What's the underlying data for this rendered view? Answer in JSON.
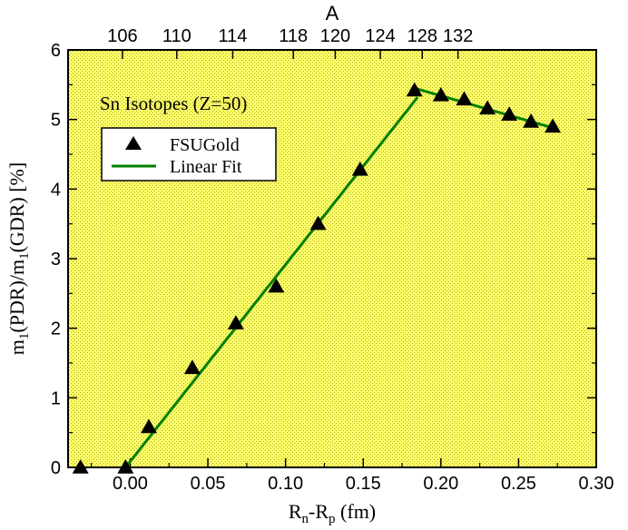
{
  "chart_data": {
    "type": "scatter",
    "annotation": "Sn Isotopes (Z=50)",
    "xlabel": {
      "main": "R",
      "sub1": "n",
      "mid": "-R",
      "sub2": "p",
      "tail": " (fm)"
    },
    "ylabel": {
      "p1": "m",
      "s1": "1",
      "p2": "(PDR)/m",
      "s2": "1",
      "p3": "(GDR) [%]"
    },
    "top_axis_title": "A",
    "xlim": [
      -0.04,
      0.3
    ],
    "ylim": [
      0,
      6
    ],
    "x_ticks": [
      "0.00",
      "0.05",
      "0.10",
      "0.15",
      "0.20",
      "0.25",
      "0.30"
    ],
    "x_tick_values": [
      0,
      0.05,
      0.1,
      0.15,
      0.2,
      0.25,
      0.3
    ],
    "y_ticks": [
      "0",
      "1",
      "2",
      "3",
      "4",
      "5",
      "6"
    ],
    "y_tick_values": [
      0,
      1,
      2,
      3,
      4,
      5,
      6
    ],
    "top_ticks": [
      {
        "label": "106",
        "x": -0.005
      },
      {
        "label": "110",
        "x": 0.03
      },
      {
        "label": "114",
        "x": 0.066
      },
      {
        "label": "118",
        "x": 0.105
      },
      {
        "label": "120",
        "x": 0.132
      },
      {
        "label": "124",
        "x": 0.161
      },
      {
        "label": "128",
        "x": 0.188
      },
      {
        "label": "132",
        "x": 0.211
      }
    ],
    "grid": false,
    "background_color": "#ffff66",
    "legend_position": "top-left",
    "series": [
      {
        "name": "FSUGold",
        "marker": "triangle",
        "color": "#000000",
        "points": [
          [
            -0.032,
            0.0
          ],
          [
            -0.003,
            0.0
          ],
          [
            0.012,
            0.58
          ],
          [
            0.04,
            1.43
          ],
          [
            0.068,
            2.07
          ],
          [
            0.094,
            2.6
          ],
          [
            0.121,
            3.5
          ],
          [
            0.148,
            4.28
          ],
          [
            0.183,
            5.42
          ],
          [
            0.2,
            5.35
          ],
          [
            0.215,
            5.29
          ],
          [
            0.23,
            5.16
          ],
          [
            0.244,
            5.07
          ],
          [
            0.258,
            4.97
          ],
          [
            0.272,
            4.9
          ]
        ]
      },
      {
        "name": "Linear Fit",
        "marker": "line",
        "color": "#008000",
        "segments": [
          [
            [
              -0.003,
              0.0
            ],
            [
              0.185,
              5.32
            ]
          ],
          [
            [
              0.183,
              5.45
            ],
            [
              0.272,
              4.88
            ]
          ]
        ]
      }
    ]
  }
}
